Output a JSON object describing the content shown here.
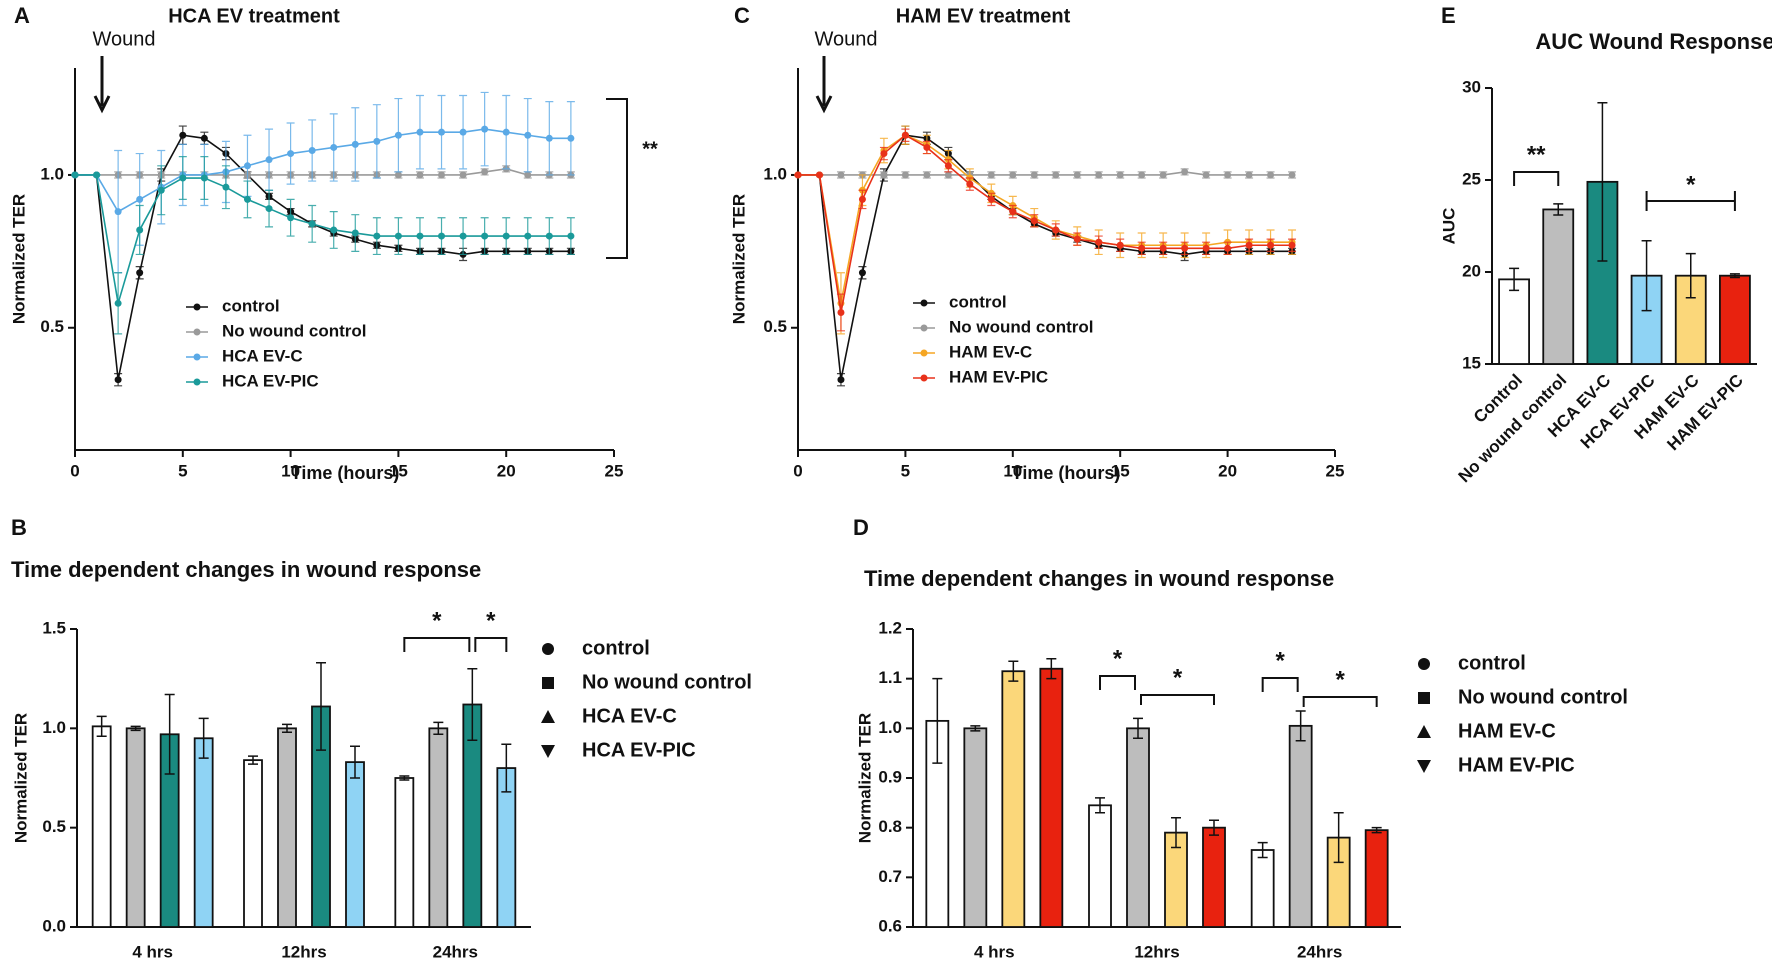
{
  "chart_data": [
    {
      "type": "line",
      "panel": "A",
      "title": "HCA EV treatment",
      "x_label": "Time (hours)",
      "y_label": "Normalized TER",
      "annotations": [
        "Wound",
        "**"
      ],
      "x": [
        0,
        1,
        2,
        3,
        4,
        5,
        6,
        7,
        8,
        9,
        10,
        11,
        12,
        13,
        14,
        15,
        16,
        17,
        18,
        19,
        20,
        21,
        22,
        23
      ],
      "xlim": [
        0,
        25
      ],
      "xticks": [
        0,
        5,
        10,
        15,
        20,
        25
      ],
      "ylim": [
        0.1,
        1.35
      ],
      "yticks": [
        0.5,
        {
          "value": 1,
          "label": "1.0"
        }
      ],
      "series": [
        {
          "name": "control",
          "color": "#111111",
          "values": [
            1,
            1,
            0.33,
            0.68,
            1,
            1.13,
            1.12,
            1.07,
            1,
            0.93,
            0.88,
            0.84,
            0.81,
            0.79,
            0.77,
            0.76,
            0.75,
            0.75,
            0.74,
            0.75,
            0.75,
            0.75,
            0.75,
            0.75
          ],
          "errors": [
            0,
            0,
            0.02,
            0.02,
            0.02,
            0.03,
            0.02,
            0.02,
            0.01,
            0.01,
            0.01,
            0.01,
            0.01,
            0.01,
            0.01,
            0.01,
            0.01,
            0.01,
            0.02,
            0.01,
            0.01,
            0.01,
            0.01,
            0.01
          ]
        },
        {
          "name": "No wound control",
          "color": "#9a9a9a",
          "values": [
            1,
            1,
            1,
            1,
            1,
            1,
            1,
            1,
            1,
            1,
            1,
            1,
            1,
            1,
            1,
            1,
            1,
            1,
            1,
            1.01,
            1.02,
            1,
            1,
            1
          ],
          "errors": [
            0,
            0,
            0.01,
            0.01,
            0.01,
            0.01,
            0.01,
            0.01,
            0.01,
            0.01,
            0.01,
            0.01,
            0.01,
            0.01,
            0.01,
            0.01,
            0.01,
            0.01,
            0.01,
            0.01,
            0.01,
            0.01,
            0.01,
            0.01
          ]
        },
        {
          "name": "HCA EV-C",
          "color": "#5aa9e6",
          "values": [
            1,
            1,
            0.88,
            0.92,
            0.96,
            1,
            1,
            1.01,
            1.03,
            1.05,
            1.07,
            1.08,
            1.09,
            1.1,
            1.11,
            1.13,
            1.14,
            1.14,
            1.14,
            1.15,
            1.14,
            1.13,
            1.12,
            1.12
          ],
          "errors": [
            0,
            0,
            0.2,
            0.15,
            0.12,
            0.1,
            0.1,
            0.1,
            0.1,
            0.1,
            0.1,
            0.1,
            0.11,
            0.12,
            0.12,
            0.12,
            0.12,
            0.12,
            0.12,
            0.12,
            0.12,
            0.12,
            0.12,
            0.12
          ]
        },
        {
          "name": "HCA EV-PIC",
          "color": "#1a9a9a",
          "values": [
            1,
            1,
            0.58,
            0.82,
            0.95,
            0.99,
            0.99,
            0.96,
            0.92,
            0.89,
            0.86,
            0.84,
            0.82,
            0.81,
            0.8,
            0.8,
            0.8,
            0.8,
            0.8,
            0.8,
            0.8,
            0.8,
            0.8,
            0.8
          ],
          "errors": [
            0,
            0,
            0.1,
            0.08,
            0.08,
            0.07,
            0.07,
            0.07,
            0.06,
            0.06,
            0.06,
            0.06,
            0.06,
            0.06,
            0.06,
            0.06,
            0.06,
            0.06,
            0.06,
            0.06,
            0.06,
            0.06,
            0.06,
            0.06
          ]
        }
      ]
    },
    {
      "type": "bar",
      "panel": "B",
      "title": "Time dependent changes in wound response",
      "y_label": "Normalized TER",
      "annotations": [
        "*",
        "*"
      ],
      "categories": [
        "4 hrs",
        "12hrs",
        "24hrs"
      ],
      "ylim": [
        0,
        1.5
      ],
      "yticks": [
        {
          "value": 0,
          "label": "0.0"
        },
        0.5,
        {
          "value": 1,
          "label": "1.0"
        },
        1.5
      ],
      "series": [
        {
          "name": "control",
          "color": "#ffffff",
          "marker": "circle",
          "values": [
            1.01,
            0.84,
            0.75
          ],
          "errors": [
            0.05,
            0.02,
            0.01
          ]
        },
        {
          "name": "No wound control",
          "color": "#bdbdbd",
          "marker": "square",
          "values": [
            1,
            1,
            1
          ],
          "errors": [
            0.01,
            0.02,
            0.03
          ]
        },
        {
          "name": "HCA EV-C",
          "color": "#1a8a80",
          "marker": "triangle",
          "values": [
            0.97,
            1.11,
            1.12
          ],
          "errors": [
            0.2,
            0.22,
            0.18
          ]
        },
        {
          "name": "HCA EV-PIC",
          "color": "#8fd3f4",
          "marker": "triangle-down",
          "values": [
            0.95,
            0.83,
            0.8
          ],
          "errors": [
            0.1,
            0.08,
            0.12
          ]
        }
      ]
    },
    {
      "type": "line",
      "panel": "C",
      "title": "HAM EV treatment",
      "x_label": "Time (hours)",
      "y_label": "Normalized TER",
      "annotations": [
        "Wound"
      ],
      "x": [
        0,
        1,
        2,
        3,
        4,
        5,
        6,
        7,
        8,
        9,
        10,
        11,
        12,
        13,
        14,
        15,
        16,
        17,
        18,
        19,
        20,
        21,
        22,
        23
      ],
      "xlim": [
        0,
        25
      ],
      "xticks": [
        0,
        5,
        10,
        15,
        20,
        25
      ],
      "ylim": [
        0.1,
        1.35
      ],
      "yticks": [
        0.5,
        {
          "value": 1,
          "label": "1.0"
        }
      ],
      "series": [
        {
          "name": "control",
          "color": "#111111",
          "values": [
            1,
            1,
            0.33,
            0.68,
            1,
            1.13,
            1.12,
            1.07,
            1,
            0.93,
            0.88,
            0.84,
            0.81,
            0.79,
            0.77,
            0.76,
            0.75,
            0.75,
            0.74,
            0.75,
            0.75,
            0.75,
            0.75,
            0.75
          ],
          "errors": [
            0,
            0,
            0.02,
            0.02,
            0.02,
            0.03,
            0.02,
            0.02,
            0.01,
            0.01,
            0.01,
            0.01,
            0.01,
            0.01,
            0.01,
            0.01,
            0.01,
            0.01,
            0.02,
            0.01,
            0.01,
            0.01,
            0.01,
            0.01
          ]
        },
        {
          "name": "No wound control",
          "color": "#9a9a9a",
          "values": [
            1,
            1,
            1,
            1,
            1,
            1,
            1,
            1,
            1,
            1,
            1,
            1,
            1,
            1,
            1,
            1,
            1,
            1,
            1.01,
            1,
            1,
            1,
            1,
            1
          ],
          "errors": [
            0,
            0,
            0.01,
            0.01,
            0.01,
            0.01,
            0.01,
            0.01,
            0.01,
            0.01,
            0.01,
            0.01,
            0.01,
            0.01,
            0.01,
            0.01,
            0.01,
            0.01,
            0.01,
            0.01,
            0.01,
            0.01,
            0.01,
            0.01
          ]
        },
        {
          "name": "HAM EV-C",
          "color": "#f5a623",
          "values": [
            1,
            1,
            0.58,
            0.95,
            1.08,
            1.13,
            1.1,
            1.05,
            0.99,
            0.94,
            0.9,
            0.86,
            0.82,
            0.8,
            0.78,
            0.77,
            0.77,
            0.77,
            0.77,
            0.77,
            0.78,
            0.78,
            0.78,
            0.78
          ],
          "errors": [
            0,
            0,
            0.1,
            0.05,
            0.04,
            0.03,
            0.03,
            0.03,
            0.03,
            0.03,
            0.03,
            0.03,
            0.03,
            0.03,
            0.04,
            0.04,
            0.04,
            0.04,
            0.04,
            0.04,
            0.04,
            0.04,
            0.04,
            0.04
          ]
        },
        {
          "name": "HAM EV-PIC",
          "color": "#e8311a",
          "values": [
            1,
            1,
            0.55,
            0.92,
            1.07,
            1.13,
            1.09,
            1.03,
            0.97,
            0.92,
            0.88,
            0.85,
            0.82,
            0.79,
            0.78,
            0.77,
            0.76,
            0.76,
            0.76,
            0.76,
            0.76,
            0.77,
            0.77,
            0.77
          ],
          "errors": [
            0,
            0,
            0.06,
            0.03,
            0.02,
            0.02,
            0.02,
            0.02,
            0.02,
            0.02,
            0.02,
            0.02,
            0.02,
            0.02,
            0.02,
            0.02,
            0.02,
            0.02,
            0.02,
            0.02,
            0.02,
            0.02,
            0.02,
            0.02
          ]
        }
      ]
    },
    {
      "type": "bar",
      "panel": "D",
      "title": "Time dependent changes in wound response",
      "y_label": "Normalized TER",
      "annotations": [
        "*",
        "*",
        "*",
        "*"
      ],
      "categories": [
        "4 hrs",
        "12hrs",
        "24hrs"
      ],
      "ylim": [
        0.6,
        1.2
      ],
      "yticks": [
        0.6,
        0.7,
        0.8,
        0.9,
        {
          "value": 1,
          "label": "1.0"
        },
        1.1,
        1.2
      ],
      "series": [
        {
          "name": "control",
          "color": "#ffffff",
          "marker": "circle",
          "values": [
            1.015,
            0.845,
            0.755
          ],
          "errors": [
            0.085,
            0.015,
            0.015
          ]
        },
        {
          "name": "No wound control",
          "color": "#bdbdbd",
          "marker": "square",
          "values": [
            1,
            1,
            1.005
          ],
          "errors": [
            0.005,
            0.02,
            0.03
          ]
        },
        {
          "name": "HAM EV-C",
          "color": "#fbd77a",
          "marker": "triangle",
          "values": [
            1.115,
            0.79,
            0.78
          ],
          "errors": [
            0.02,
            0.03,
            0.05
          ]
        },
        {
          "name": "HAM EV-PIC",
          "color": "#e8220f",
          "marker": "triangle-down",
          "values": [
            1.12,
            0.8,
            0.795
          ],
          "errors": [
            0.02,
            0.015,
            0.005
          ]
        }
      ]
    },
    {
      "type": "bar",
      "panel": "E",
      "title": "AUC Wound Response",
      "y_label": "AUC",
      "annotations": [
        "**",
        "*"
      ],
      "categories": [
        "Control",
        "No wound control",
        "HCA EV-C",
        "HCA EV-PIC",
        "HAM EV-C",
        "HAM EV-PIC"
      ],
      "values": [
        19.6,
        23.4,
        24.9,
        19.8,
        19.8,
        19.8
      ],
      "errors": [
        0.6,
        0.3,
        4.3,
        1.9,
        1.2,
        0.1
      ],
      "colors": [
        "#ffffff",
        "#bdbdbd",
        "#1a8a80",
        "#8fd3f4",
        "#fbd77a",
        "#e8220f"
      ],
      "ylim": [
        15,
        30
      ],
      "yticks": [
        15,
        20,
        25,
        30
      ]
    }
  ]
}
